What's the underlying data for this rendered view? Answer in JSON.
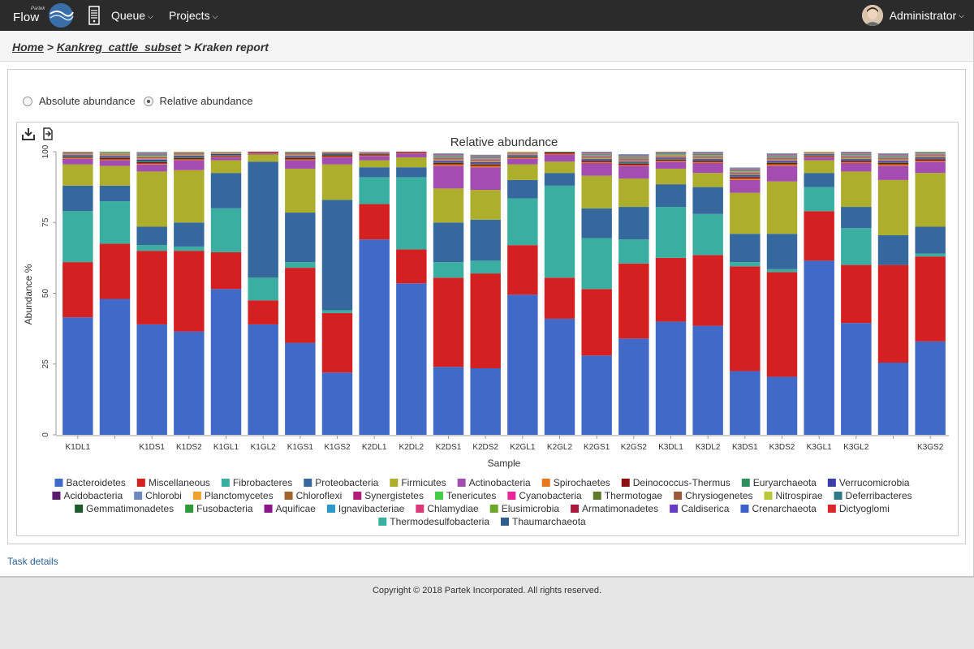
{
  "nav": {
    "brand_small": "Partek",
    "brand": "Flow",
    "queue": "Queue",
    "projects": "Projects",
    "user": "Administrator"
  },
  "breadcrumb": {
    "home": "Home",
    "sep1": " > ",
    "project": "Kankreg_cattle_subset",
    "sep2": " > ",
    "current": "Kraken report"
  },
  "radios": {
    "absolute": "Absolute abundance",
    "relative": "Relative abundance",
    "selected": "relative"
  },
  "task_link": "Task details",
  "footer": {
    "copyright": "Copyright © 2018 Partek Incorporated. All rights reserved."
  },
  "chart_data": {
    "type": "bar",
    "stacked": true,
    "title": "Relative abundance",
    "xlabel": "Sample",
    "ylabel": "Abundance %",
    "ylim": [
      0,
      100
    ],
    "yticks": [
      0,
      25,
      50,
      75,
      100
    ],
    "categories": [
      "K1DL1",
      "",
      "K1DS1",
      "K1DS2",
      "K1GL1",
      "K1GL2",
      "K1GS1",
      "K1GS2",
      "K2DL1",
      "K2DL2",
      "K2DS1",
      "K2DS2",
      "K2GL1",
      "K2GL2",
      "K2GS1",
      "K2GS2",
      "K3DL1",
      "K3DL2",
      "K3DS1",
      "K3DS2",
      "K3GL1",
      "K3GL2",
      "",
      "K3GS2"
    ],
    "series": [
      {
        "name": "Bacteroidetes",
        "color": "#4169c8",
        "values": [
          41.5,
          48,
          39,
          36.5,
          51.5,
          39,
          32.5,
          22,
          69,
          53.5,
          24,
          23.5,
          49.5,
          41,
          28,
          34,
          40,
          38.5,
          22.5,
          20.5,
          61.5,
          39.5,
          25.5,
          33
        ]
      },
      {
        "name": "Miscellaneous",
        "color": "#d42020",
        "values": [
          19.5,
          19.5,
          26,
          28.5,
          13,
          8.5,
          26.5,
          21,
          12.5,
          12,
          31.5,
          33.5,
          17.5,
          14.5,
          23.5,
          26.5,
          22.5,
          25,
          37,
          37,
          17.5,
          20.5,
          34.5,
          30
        ]
      },
      {
        "name": "Fibrobacteres",
        "color": "#3aaea0",
        "values": [
          18,
          15,
          2,
          1.5,
          15.5,
          8,
          2,
          1,
          9.5,
          25.5,
          5.5,
          4.5,
          16.5,
          32.5,
          18,
          8.5,
          18,
          14.5,
          1.5,
          1,
          8.5,
          13,
          0,
          1
        ]
      },
      {
        "name": "Proteobacteria",
        "color": "#35699e",
        "values": [
          9,
          5.5,
          6.5,
          8.5,
          12.5,
          41,
          17.5,
          39,
          3.5,
          3.5,
          14,
          14.5,
          6.5,
          4.5,
          10.5,
          11.5,
          8,
          9.5,
          10,
          12.5,
          5,
          7.5,
          10.5,
          9.5
        ]
      },
      {
        "name": "Firmicutes",
        "color": "#acae2c",
        "values": [
          7.5,
          7,
          19.5,
          18.5,
          4.5,
          2.5,
          15.5,
          12.5,
          2.5,
          3.5,
          12,
          10.5,
          5.5,
          4,
          11.5,
          10,
          5.5,
          5,
          14.5,
          18.5,
          4.5,
          12.5,
          19.5,
          19
        ]
      },
      {
        "name": "Actinobacteria",
        "color": "#a44db0",
        "values": [
          2,
          2,
          2.5,
          3.5,
          1,
          0.5,
          3,
          2.5,
          1.5,
          1.5,
          8,
          8,
          2,
          2.5,
          4.5,
          4.5,
          2.5,
          3.5,
          4.5,
          5.5,
          1,
          3,
          5,
          4
        ]
      },
      {
        "name": "Spirochaetes",
        "color": "#e87820",
        "values": [
          0.3,
          0.3,
          0.3,
          0.3,
          0.2,
          0.2,
          0.3,
          0.3,
          0.2,
          0.2,
          0.5,
          0.5,
          0.3,
          0.3,
          0.3,
          0.3,
          0.3,
          0.3,
          0.5,
          0.5,
          0.2,
          0.3,
          0.5,
          0.3
        ]
      },
      {
        "name": "Deinococcus-Thermus",
        "color": "#8b0f0f",
        "values": [
          0.3,
          0.5,
          0.5,
          0.4,
          0.3,
          0.5,
          0.5,
          0.4,
          0.3,
          0.5,
          0.5,
          0.5,
          0.3,
          0.5,
          0.4,
          0.5,
          0.4,
          0.4,
          0.5,
          0.5,
          0.3,
          0.4,
          0.5,
          0.5
        ]
      },
      {
        "name": "Euryarchaeota",
        "color": "#2f8f5b",
        "values": [
          0.3,
          0.3,
          0.4,
          0.5,
          0.3,
          0.2,
          0.3,
          0.3,
          0.2,
          0.2,
          0.3,
          0.3,
          0.3,
          0.3,
          0.3,
          0.3,
          0.3,
          0.3,
          0.3,
          0.3,
          0.3,
          0.3,
          0.3,
          0.3
        ]
      },
      {
        "name": "Verrucomicrobia",
        "color": "#3b3da8",
        "values": [
          0.2,
          0.2,
          0.3,
          0.2,
          0.2,
          0.1,
          0.2,
          0.2,
          0.1,
          0.5,
          0.3,
          0.3,
          0.2,
          0.5,
          0.2,
          0.2,
          0.2,
          0.2,
          0.3,
          0.3,
          0.2,
          0.2,
          0.3,
          0.2
        ]
      },
      {
        "name": "Acidobacteria",
        "color": "#5a1a6e",
        "values": [
          0.2,
          0.2,
          0.2,
          0.2,
          0.2,
          0.1,
          0.2,
          0.2,
          0.1,
          0.2,
          0.2,
          0.2,
          0.2,
          0.2,
          0.2,
          0.2,
          0.2,
          0.2,
          0.2,
          0.2,
          0.1,
          0.2,
          0.2,
          0.2
        ]
      },
      {
        "name": "Chlorobi",
        "color": "#6d8ac0",
        "values": [
          0.2,
          0.2,
          0.2,
          0.2,
          0.2,
          0.1,
          0.2,
          0.2,
          0.1,
          0.2,
          0.2,
          0.2,
          0.2,
          0.2,
          0.2,
          0.2,
          0.2,
          0.2,
          0.2,
          0.2,
          0.1,
          0.2,
          0.2,
          0.2
        ]
      },
      {
        "name": "Planctomycetes",
        "color": "#f0a030",
        "values": [
          0.2,
          0.2,
          0.2,
          0.2,
          0.2,
          0.1,
          0.2,
          0.2,
          0.1,
          0.1,
          0.2,
          0.2,
          0.2,
          0.1,
          0.2,
          0.2,
          0.2,
          0.2,
          0.2,
          0.2,
          0.1,
          0.2,
          0.2,
          0.2
        ]
      },
      {
        "name": "Chloroflexi",
        "color": "#a0642a",
        "values": [
          0.2,
          0.2,
          0.2,
          0.2,
          0.2,
          0.1,
          0.2,
          0.2,
          0.1,
          0.1,
          0.2,
          0.2,
          0.2,
          0.1,
          0.2,
          0.2,
          0.2,
          0.2,
          0.2,
          0.2,
          0.1,
          0.2,
          0.2,
          0.2
        ]
      },
      {
        "name": "Synergistetes",
        "color": "#b01d7a",
        "values": [
          0.2,
          0.1,
          0.2,
          0.2,
          0.1,
          0.1,
          0.2,
          0.2,
          0.1,
          0.1,
          0.2,
          0.2,
          0.1,
          0.1,
          0.2,
          0.2,
          0.1,
          0.2,
          0.2,
          0.2,
          0.1,
          0.2,
          0.2,
          0.2
        ]
      },
      {
        "name": "Tenericutes",
        "color": "#44cc44",
        "values": [
          0.2,
          0.1,
          0.2,
          0.2,
          0.1,
          0.1,
          0.1,
          0.1,
          0.1,
          0.1,
          0.1,
          0.1,
          0.1,
          0.1,
          0.1,
          0.1,
          0.2,
          0.2,
          0.1,
          0.1,
          0.1,
          0.1,
          0.1,
          0.1
        ]
      },
      {
        "name": "Cyanobacteria",
        "color": "#e8259a",
        "values": [
          0.1,
          0.1,
          0.1,
          0.1,
          0.1,
          0.1,
          0.1,
          0.1,
          0.1,
          0.1,
          0.1,
          0.1,
          0.1,
          0.1,
          0.1,
          0.1,
          0.1,
          0.1,
          0.1,
          0.1,
          0.1,
          0.1,
          0.1,
          0.1
        ]
      },
      {
        "name": "Thermotogae",
        "color": "#5e7a2a",
        "values": [
          0.1,
          0.1,
          0.1,
          0.1,
          0.1,
          0.1,
          0.1,
          0.1,
          0.1,
          0.1,
          0.1,
          0.1,
          0.1,
          0.1,
          0.1,
          0.1,
          0.1,
          0.1,
          0.1,
          0.1,
          0.1,
          0.1,
          0.1,
          0.1
        ]
      },
      {
        "name": "Chrysiogenetes",
        "color": "#9a5a3a",
        "values": [
          0.1,
          0.1,
          0.1,
          0.1,
          0.1,
          0.1,
          0.1,
          0.1,
          0.1,
          0.1,
          0.1,
          0.1,
          0.1,
          0.1,
          0.1,
          0.1,
          0.1,
          0.1,
          0.1,
          0.1,
          0.1,
          0.1,
          0.1,
          0.1
        ]
      },
      {
        "name": "Nitrospirae",
        "color": "#b8c83a",
        "values": [
          0.1,
          0.1,
          0.1,
          0.1,
          0.1,
          0.1,
          0.1,
          0.1,
          0.1,
          0.1,
          0.1,
          0.1,
          0.1,
          0.1,
          0.1,
          0.1,
          0.1,
          0.1,
          0.1,
          0.1,
          0.1,
          0.1,
          0.1,
          0.1
        ]
      },
      {
        "name": "Deferribacteres",
        "color": "#2f7a8a",
        "values": [
          0.1,
          0.1,
          0.1,
          0.1,
          0.1,
          0.1,
          0.1,
          0.1,
          0.1,
          0.1,
          0.1,
          0.1,
          0.1,
          0.1,
          0.1,
          0.1,
          0.1,
          0.1,
          0.1,
          0.1,
          0.1,
          0.1,
          0.1,
          0.1
        ]
      },
      {
        "name": "Gemmatimonadetes",
        "color": "#1e5a2a",
        "values": [
          0.1,
          0.1,
          0.1,
          0.1,
          0.1,
          0.1,
          0.1,
          0.1,
          0.1,
          0.1,
          0.1,
          0.1,
          0.1,
          0.1,
          0.1,
          0.1,
          0.1,
          0.1,
          0.1,
          0.1,
          0.1,
          0.1,
          0.1,
          0.1
        ]
      },
      {
        "name": "Fusobacteria",
        "color": "#2e9a36",
        "values": [
          0.1,
          0.1,
          0.1,
          0.1,
          0.1,
          0.1,
          0.1,
          0.1,
          0.1,
          0.1,
          0.1,
          0.1,
          0.1,
          0.1,
          0.1,
          0.1,
          0.1,
          0.1,
          0.1,
          0.1,
          0.1,
          0.1,
          0.1,
          0.1
        ]
      },
      {
        "name": "Aquificae",
        "color": "#8a168a",
        "values": [
          0.1,
          0.1,
          0.1,
          0.1,
          0.1,
          0.1,
          0.1,
          0.1,
          0.1,
          0.1,
          0.1,
          0.1,
          0.1,
          0.1,
          0.1,
          0.1,
          0.1,
          0.1,
          0.1,
          0.1,
          0.1,
          0.1,
          0.1,
          0.1
        ]
      },
      {
        "name": "Ignavibacteriae",
        "color": "#2a9ac8",
        "values": [
          0.1,
          0.1,
          0.1,
          0.1,
          0.1,
          0.1,
          0.1,
          0.1,
          0.1,
          0.1,
          0.1,
          0.1,
          0.1,
          0.1,
          0.1,
          0.1,
          0.1,
          0.1,
          0.1,
          0.1,
          0.1,
          0.1,
          0.1,
          0.1
        ]
      },
      {
        "name": "Chlamydiae",
        "color": "#d83a7a",
        "values": [
          0.1,
          0.1,
          0.1,
          0.1,
          0.1,
          0.1,
          0.1,
          0.1,
          0.1,
          0.1,
          0.1,
          0.1,
          0.1,
          0.1,
          0.1,
          0.1,
          0.1,
          0.1,
          0.1,
          0.1,
          0.1,
          0.1,
          0.1,
          0.1
        ]
      },
      {
        "name": "Elusimicrobia",
        "color": "#6aa82a",
        "values": [
          0.1,
          0.1,
          0.1,
          0.1,
          0.1,
          0.1,
          0.1,
          0.1,
          0.1,
          0.1,
          0.1,
          0.1,
          0.1,
          0.1,
          0.1,
          0.1,
          0.1,
          0.1,
          0.1,
          0.1,
          0.1,
          0.1,
          0.1,
          0.1
        ]
      },
      {
        "name": "Armatimonadetes",
        "color": "#a81a3a",
        "values": [
          0.1,
          0.1,
          0.1,
          0.1,
          0.1,
          0.1,
          0.1,
          0.1,
          0.1,
          0.1,
          0.1,
          0.1,
          0.1,
          0.1,
          0.1,
          0.1,
          0.1,
          0.1,
          0.1,
          0.1,
          0.1,
          0.1,
          0.1,
          0.1
        ]
      },
      {
        "name": "Caldiserica",
        "color": "#6a3ac8",
        "values": [
          0.1,
          0.1,
          0.1,
          0.1,
          0.1,
          0.1,
          0.1,
          0.1,
          0.1,
          0.1,
          0.1,
          0.1,
          0.1,
          0.1,
          0.1,
          0.1,
          0.1,
          0.1,
          0.1,
          0.1,
          0.1,
          0.1,
          0.1,
          0.1
        ]
      },
      {
        "name": "Crenarchaeota",
        "color": "#3a62c8",
        "values": [
          0.1,
          0.1,
          0.1,
          0.1,
          0.1,
          0.1,
          0.1,
          0.1,
          0.1,
          0.1,
          0.1,
          0.1,
          0.1,
          0.1,
          0.1,
          0.1,
          0.1,
          0.1,
          0.1,
          0.1,
          0.1,
          0.1,
          0.1,
          0.1
        ]
      },
      {
        "name": "Dictyoglomi",
        "color": "#d8282a",
        "values": [
          0.1,
          0.1,
          0.1,
          0.1,
          0.1,
          0.1,
          0.1,
          0.1,
          0.1,
          0.1,
          0.1,
          0.1,
          0.1,
          0.1,
          0.1,
          0.1,
          0.1,
          0.1,
          0.1,
          0.1,
          0.1,
          0.1,
          0.1,
          0.1
        ]
      },
      {
        "name": "Thermodesulfobacteria",
        "color": "#3ab0a0",
        "values": [
          0.1,
          0.1,
          0.1,
          0.1,
          0.1,
          0.1,
          0.1,
          0.1,
          0.1,
          0.1,
          0.1,
          0.1,
          0.1,
          0.1,
          0.1,
          0.1,
          0.1,
          0.1,
          0.1,
          0.1,
          0.1,
          0.1,
          0.1,
          0.1
        ]
      },
      {
        "name": "Thaumarchaeota",
        "color": "#2e5f8e",
        "values": [
          0.1,
          0.1,
          0.1,
          0.1,
          0.1,
          0.1,
          0.1,
          0.1,
          0.1,
          0.1,
          0.1,
          0.1,
          0.1,
          0.1,
          0.1,
          0.1,
          0.1,
          0.1,
          0.1,
          0.1,
          0.1,
          0.1,
          0.1,
          0.1
        ]
      }
    ]
  }
}
